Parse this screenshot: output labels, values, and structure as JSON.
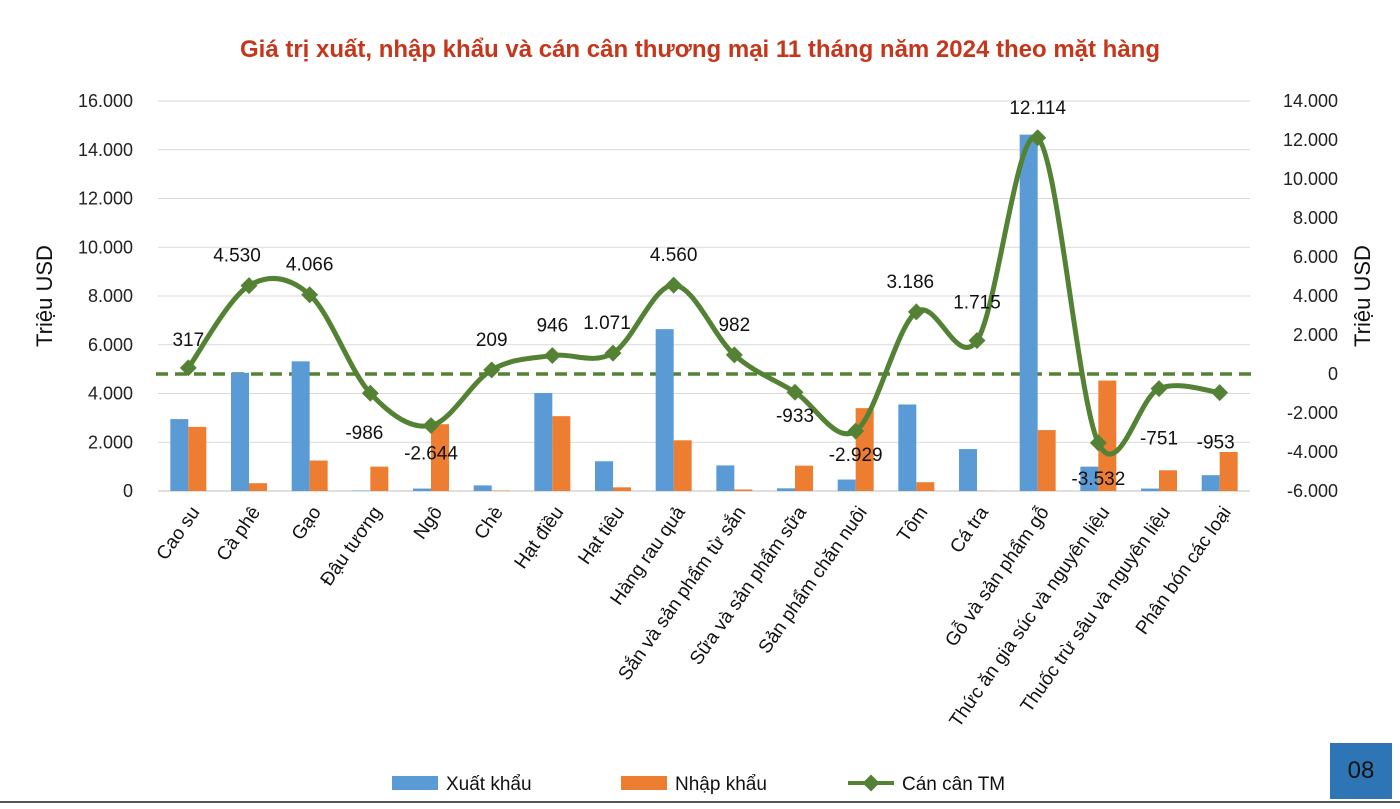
{
  "chart_data": {
    "type": "bar",
    "title": "Giá trị xuất, nhập khẩu và cán cân thương mại 11 tháng năm 2024 theo mặt hàng",
    "ylabel": "Triệu USD",
    "y2label": "Triệu USD",
    "ylim": [
      0,
      16000
    ],
    "y2lim": [
      -6000,
      14000
    ],
    "y_ticks": [
      "0",
      "2.000",
      "4.000",
      "6.000",
      "8.000",
      "10.000",
      "12.000",
      "14.000",
      "16.000"
    ],
    "y2_ticks": [
      "-6.000",
      "-4.000",
      "-2.000",
      "0",
      "2.000",
      "4.000",
      "6.000",
      "8.000",
      "10.000",
      "12.000",
      "14.000"
    ],
    "categories": [
      "Cao su",
      "Cà phê",
      "Gạo",
      "Đậu tương",
      "Ngô",
      "Chè",
      "Hạt điều",
      "Hạt tiêu",
      "Hàng rau quả",
      "Sắn và sản phẩm từ sắn",
      "Sữa và sản phẩm sữa",
      "Sản phẩm chăn nuôi",
      "Tôm",
      "Cá tra",
      "Gỗ và sản phẩm gỗ",
      "Thức ăn gia súc và nguyên liệu",
      "Thuốc trừ sâu và nguyên liệu",
      "Phân bón các loại"
    ],
    "series": [
      {
        "name": "Xuất khẩu",
        "type": "bar",
        "axis": "left",
        "color": "#5b9bd5",
        "values": [
          2950,
          4850,
          5320,
          20,
          100,
          230,
          4020,
          1220,
          6640,
          1050,
          110,
          470,
          3550,
          1720,
          14620,
          1000,
          100,
          650
        ]
      },
      {
        "name": "Nhập khẩu",
        "type": "bar",
        "axis": "left",
        "color": "#ed7d31",
        "values": [
          2630,
          320,
          1250,
          1000,
          2740,
          20,
          3070,
          150,
          2080,
          60,
          1040,
          3400,
          360,
          10,
          2500,
          4530,
          850,
          1600
        ]
      },
      {
        "name": "Cán cân TM",
        "type": "line",
        "axis": "right",
        "color": "#548235",
        "values": [
          317,
          4530,
          4066,
          -986,
          -2644,
          209,
          946,
          1071,
          4560,
          982,
          -933,
          -2929,
          3186,
          1715,
          12114,
          -3532,
          -751,
          -953
        ],
        "labels": [
          "317",
          "4.530",
          "4.066",
          "-986",
          "-2.644",
          "209",
          "946",
          "1.071",
          "4.560",
          "982",
          "-933",
          "-2.929",
          "3.186",
          "1.715",
          "12.114",
          "-3.532",
          "-751",
          "-953"
        ]
      }
    ],
    "legend": "bottom"
  },
  "colors": {
    "title": "#c5361b",
    "export": "#5b9bd5",
    "import": "#ed7d31",
    "balance": "#548235",
    "badge": "#2e75b6"
  },
  "page": {
    "number": "08"
  }
}
